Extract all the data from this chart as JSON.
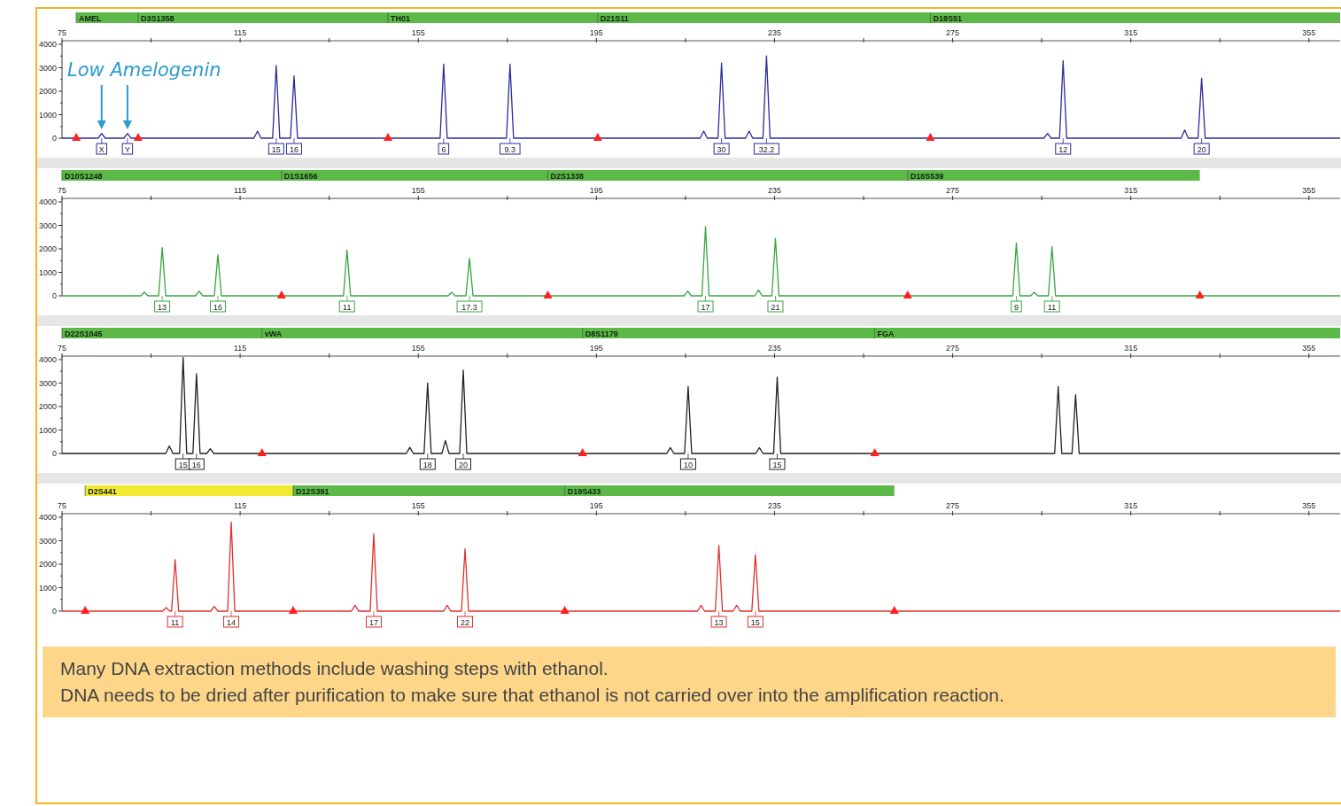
{
  "chart_data": [
    {
      "type": "line",
      "xlim": [
        75,
        362
      ],
      "ylim": [
        0,
        4150
      ],
      "xticks": [
        75,
        {
          "value": 95,
          "label": null
        },
        115,
        {
          "value": 135,
          "label": null
        },
        155,
        {
          "value": 175,
          "label": null
        },
        195,
        {
          "value": 215,
          "label": null
        },
        235,
        {
          "value": 255,
          "label": null
        },
        275,
        {
          "value": 295,
          "label": null
        },
        315,
        {
          "value": 335,
          "label": null
        },
        355
      ],
      "yticks": [
        0,
        {
          "value": 500,
          "label": null
        },
        1000,
        {
          "value": 1500,
          "label": null
        },
        2000,
        {
          "value": 2500,
          "label": null
        },
        3000,
        {
          "value": 3500,
          "label": null
        },
        4000
      ],
      "series": [
        {
          "type": "line",
          "color": "#2b2b9e",
          "x": [
            75,
            83.1,
            83.9,
            84.7,
            88.9,
            89.7,
            90.5,
            118.1,
            118.9,
            119.7,
            122.3,
            123.1,
            123.9,
            126.3,
            127.1,
            127.9,
            159.9,
            160.7,
            161.5,
            174.8,
            175.6,
            176.4,
            218.3,
            219.1,
            219.9,
            222.3,
            223.1,
            223.9,
            228.5,
            229.3,
            230.1,
            232.4,
            233.2,
            234.0,
            295.5,
            296.3,
            297.1,
            299.0,
            299.8,
            300.6,
            326.3,
            327.1,
            327.9,
            330.1,
            330.9,
            331.7,
            362
          ],
          "values": [
            0,
            0,
            200,
            0,
            0,
            200,
            0,
            0,
            300,
            0,
            0,
            3100,
            0,
            0,
            2650,
            0,
            0,
            3150,
            0,
            0,
            3150,
            0,
            0,
            300,
            0,
            0,
            3200,
            0,
            0,
            300,
            0,
            0,
            3500,
            0,
            0,
            200,
            0,
            0,
            3300,
            0,
            0,
            350,
            0,
            0,
            2550,
            0,
            0
          ]
        },
        {
          "type": "scatter",
          "marker": "triangle",
          "color": "#ff2020",
          "x": [
            78.2,
            92.1,
            148.2,
            195.3,
            270.0
          ],
          "values": [
            0,
            0,
            0,
            0,
            0
          ]
        }
      ],
      "bands": [
        {
          "axis": "x",
          "from": 78.2,
          "to": 92.1,
          "label": "AMEL",
          "color": "#5cb947"
        },
        {
          "axis": "x",
          "from": 92.1,
          "to": 148.2,
          "label": "D3S1358",
          "color": "#5cb947"
        },
        {
          "axis": "x",
          "from": 148.2,
          "to": 195.3,
          "label": "TH01",
          "color": "#5cb947"
        },
        {
          "axis": "x",
          "from": 195.3,
          "to": 270.0,
          "label": "D21S11",
          "color": "#5cb947"
        },
        {
          "axis": "x",
          "from": 270.0,
          "to": 362,
          "label": "D18S51",
          "color": "#5cb947"
        }
      ],
      "annotations": [
        "Low Amelogenin",
        {
          "text": "X",
          "x": 83.9,
          "y": 0
        },
        {
          "text": "Y",
          "x": 89.7,
          "y": 0
        },
        {
          "text": "15",
          "x": 123.1,
          "y": 0
        },
        {
          "text": "16",
          "x": 127.1,
          "y": 0
        },
        {
          "text": "6",
          "x": 160.7,
          "y": 0
        },
        {
          "text": "9.3",
          "x": 175.6,
          "y": 0
        },
        {
          "text": "30",
          "x": 223.1,
          "y": 0
        },
        {
          "text": "32.2",
          "x": 233.2,
          "y": 0
        },
        {
          "text": "12",
          "x": 299.8,
          "y": 0
        },
        {
          "text": "20",
          "x": 330.9,
          "y": 0
        }
      ]
    },
    {
      "type": "line",
      "xlim": [
        75,
        362
      ],
      "ylim": [
        0,
        4150
      ],
      "xticks": [
        75,
        {
          "value": 95,
          "label": null
        },
        115,
        {
          "value": 135,
          "label": null
        },
        155,
        {
          "value": 175,
          "label": null
        },
        195,
        {
          "value": 215,
          "label": null
        },
        235,
        {
          "value": 255,
          "label": null
        },
        275,
        {
          "value": 295,
          "label": null
        },
        315,
        {
          "value": 335,
          "label": null
        },
        355
      ],
      "yticks": [
        0,
        {
          "value": 500,
          "label": null
        },
        1000,
        {
          "value": 1500,
          "label": null
        },
        2000,
        {
          "value": 2500,
          "label": null
        },
        3000,
        {
          "value": 3500,
          "label": null
        },
        4000
      ],
      "series": [
        {
          "type": "line",
          "color": "#36a640",
          "x": [
            75,
            92.7,
            93.5,
            94.3,
            96.7,
            97.5,
            98.3,
            105.0,
            105.8,
            106.6,
            109.2,
            110.0,
            110.8,
            138.2,
            139.0,
            139.8,
            161.7,
            162.5,
            163.3,
            165.7,
            166.5,
            167.3,
            214.7,
            215.5,
            216.3,
            218.7,
            219.5,
            220.3,
            230.6,
            231.4,
            232.2,
            234.4,
            235.2,
            236.0,
            288.5,
            289.3,
            290.1,
            292.5,
            293.3,
            294.1,
            296.5,
            297.3,
            298.1,
            362
          ],
          "values": [
            0,
            0,
            160,
            0,
            0,
            2050,
            0,
            0,
            200,
            0,
            0,
            1750,
            0,
            0,
            1950,
            0,
            0,
            150,
            0,
            0,
            1600,
            0,
            0,
            200,
            0,
            0,
            2950,
            0,
            0,
            250,
            0,
            0,
            2450,
            0,
            0,
            2250,
            0,
            0,
            150,
            0,
            0,
            2100,
            0,
            0
          ]
        },
        {
          "type": "scatter",
          "marker": "triangle",
          "color": "#ff2020",
          "x": [
            124.3,
            184.1,
            264.9,
            330.5
          ],
          "values": [
            0,
            0,
            0,
            0
          ]
        }
      ],
      "bands": [
        {
          "axis": "x",
          "from": 75,
          "to": 124.3,
          "label": "D10S1248",
          "color": "#5cb947"
        },
        {
          "axis": "x",
          "from": 124.3,
          "to": 184.1,
          "label": "D1S1656",
          "color": "#5cb947"
        },
        {
          "axis": "x",
          "from": 184.1,
          "to": 264.9,
          "label": "D2S1338",
          "color": "#5cb947"
        },
        {
          "axis": "x",
          "from": 264.9,
          "to": 330.5,
          "label": "D16S539",
          "color": "#5cb947"
        }
      ],
      "annotations": [
        {
          "text": "13",
          "x": 97.5,
          "y": 0
        },
        {
          "text": "16",
          "x": 110.0,
          "y": 0
        },
        {
          "text": "11",
          "x": 139.0,
          "y": 0
        },
        {
          "text": "17.3",
          "x": 166.5,
          "y": 0
        },
        {
          "text": "17",
          "x": 219.5,
          "y": 0
        },
        {
          "text": "21",
          "x": 235.2,
          "y": 0
        },
        {
          "text": "9",
          "x": 289.3,
          "y": 0
        },
        {
          "text": "11",
          "x": 297.3,
          "y": 0
        }
      ]
    },
    {
      "type": "line",
      "xlim": [
        75,
        362
      ],
      "ylim": [
        0,
        4150
      ],
      "xticks": [
        75,
        {
          "value": 95,
          "label": null
        },
        115,
        {
          "value": 135,
          "label": null
        },
        155,
        {
          "value": 175,
          "label": null
        },
        195,
        {
          "value": 215,
          "label": null
        },
        235,
        {
          "value": 255,
          "label": null
        },
        275,
        {
          "value": 295,
          "label": null
        },
        315,
        {
          "value": 335,
          "label": null
        },
        355
      ],
      "yticks": [
        0,
        {
          "value": 500,
          "label": null
        },
        1000,
        {
          "value": 1500,
          "label": null
        },
        2000,
        {
          "value": 2500,
          "label": null
        },
        3000,
        {
          "value": 3500,
          "label": null
        },
        4000
      ],
      "series": [
        {
          "type": "line",
          "color": "#222222",
          "x": [
            75,
            98.3,
            99.1,
            99.9,
            101.4,
            102.2,
            103.0,
            104.4,
            105.2,
            106.0,
            107.5,
            108.3,
            109.1,
            152.3,
            153.1,
            153.9,
            156.3,
            157.1,
            157.9,
            160.3,
            161.1,
            161.9,
            164.3,
            165.1,
            165.9,
            210.8,
            211.6,
            212.4,
            214.8,
            215.6,
            216.4,
            230.8,
            231.6,
            232.4,
            234.8,
            235.6,
            236.4,
            297.9,
            298.7,
            299.5,
            301.8,
            302.6,
            303.4,
            362
          ],
          "values": [
            0,
            0,
            320,
            0,
            0,
            4100,
            0,
            0,
            3400,
            0,
            0,
            200,
            0,
            0,
            260,
            0,
            0,
            3000,
            0,
            0,
            550,
            0,
            0,
            3550,
            0,
            0,
            250,
            0,
            0,
            2850,
            0,
            0,
            250,
            0,
            0,
            3250,
            0,
            0,
            2850,
            0,
            0,
            2500,
            0,
            0
          ]
        },
        {
          "type": "scatter",
          "marker": "triangle",
          "color": "#ff2020",
          "x": [
            119.9,
            191.9,
            257.5
          ],
          "values": [
            0,
            0,
            0
          ]
        }
      ],
      "bands": [
        {
          "axis": "x",
          "from": 75,
          "to": 119.9,
          "label": "D22S1045",
          "color": "#5cb947"
        },
        {
          "axis": "x",
          "from": 119.9,
          "to": 191.9,
          "label": "vWA",
          "color": "#5cb947"
        },
        {
          "axis": "x",
          "from": 191.9,
          "to": 257.5,
          "label": "D8S1179",
          "color": "#5cb947"
        },
        {
          "axis": "x",
          "from": 257.5,
          "to": 362,
          "label": "FGA",
          "color": "#5cb947"
        }
      ],
      "annotations": [
        {
          "text": "15",
          "x": 102.2,
          "y": 0
        },
        {
          "text": "16",
          "x": 105.2,
          "y": 0
        },
        {
          "text": "18",
          "x": 157.1,
          "y": 0
        },
        {
          "text": "20",
          "x": 165.1,
          "y": 0
        },
        {
          "text": "10",
          "x": 215.6,
          "y": 0
        },
        {
          "text": "15",
          "x": 235.6,
          "y": 0
        }
      ]
    },
    {
      "type": "line",
      "xlim": [
        75,
        362
      ],
      "ylim": [
        0,
        4150
      ],
      "xticks": [
        75,
        {
          "value": 95,
          "label": null
        },
        115,
        {
          "value": 135,
          "label": null
        },
        155,
        {
          "value": 175,
          "label": null
        },
        195,
        {
          "value": 215,
          "label": null
        },
        235,
        {
          "value": 255,
          "label": null
        },
        275,
        {
          "value": 295,
          "label": null
        },
        315,
        {
          "value": 335,
          "label": null
        },
        355
      ],
      "yticks": [
        0,
        {
          "value": 500,
          "label": null
        },
        1000,
        {
          "value": 1500,
          "label": null
        },
        2000,
        {
          "value": 2500,
          "label": null
        },
        3000,
        {
          "value": 3500,
          "label": null
        },
        4000
      ],
      "series": [
        {
          "type": "line",
          "color": "#e03030",
          "x": [
            75,
            97.6,
            98.4,
            99.2,
            99.6,
            100.4,
            101.2,
            108.4,
            109.2,
            110.0,
            112.2,
            113.0,
            113.8,
            140.0,
            140.8,
            141.6,
            144.2,
            145.0,
            145.8,
            160.7,
            161.5,
            162.3,
            164.7,
            165.5,
            166.3,
            217.7,
            218.5,
            219.3,
            221.7,
            222.5,
            223.3,
            225.7,
            226.5,
            227.3,
            229.9,
            230.7,
            231.5,
            362
          ],
          "values": [
            0,
            0,
            150,
            0,
            0,
            2200,
            0,
            0,
            200,
            0,
            0,
            3800,
            0,
            0,
            250,
            0,
            0,
            3300,
            0,
            0,
            250,
            0,
            0,
            2650,
            0,
            0,
            250,
            0,
            0,
            2800,
            0,
            0,
            250,
            0,
            0,
            2400,
            0,
            0
          ]
        },
        {
          "type": "scatter",
          "marker": "triangle",
          "color": "#ff2020",
          "x": [
            80.2,
            126.9,
            187.9,
            261.9
          ],
          "values": [
            0,
            0,
            0,
            0
          ]
        }
      ],
      "bands": [
        {
          "axis": "x",
          "from": 80.2,
          "to": 126.9,
          "label": "D2S441",
          "color": "#f2ea2e"
        },
        {
          "axis": "x",
          "from": 126.9,
          "to": 187.9,
          "label": "D12S391",
          "color": "#5cb947"
        },
        {
          "axis": "x",
          "from": 187.9,
          "to": 261.9,
          "label": "D19S433",
          "color": "#5cb947"
        }
      ],
      "annotations": [
        {
          "text": "11",
          "x": 100.4,
          "y": 0
        },
        {
          "text": "14",
          "x": 113.0,
          "y": 0
        },
        {
          "text": "17",
          "x": 145.0,
          "y": 0
        },
        {
          "text": "22",
          "x": 165.5,
          "y": 0
        },
        {
          "text": "13",
          "x": 222.5,
          "y": 0
        },
        {
          "text": "15",
          "x": 230.7,
          "y": 0
        },
        "Many DNA extraction methods include washing steps with ethanol.",
        "DNA needs to be dried after purification to make sure that ethanol is not carried over into the amplification reaction."
      ]
    }
  ]
}
